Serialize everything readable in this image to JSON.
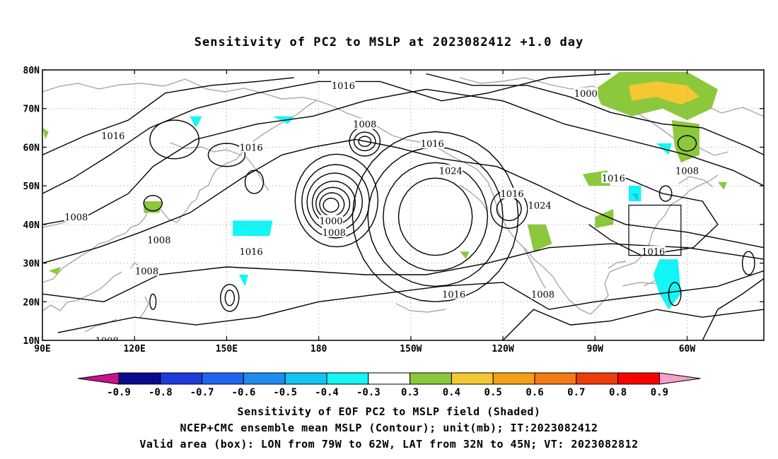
{
  "title": "Sensitivity of PC2 to MSLP at 2023082412 +1.0 day",
  "map": {
    "lat_ticks": [
      "80N",
      "70N",
      "60N",
      "50N",
      "40N",
      "30N",
      "20N",
      "10N"
    ],
    "lon_ticks": [
      "90E",
      "120E",
      "150E",
      "180",
      "150W",
      "120W",
      "90W",
      "60W"
    ],
    "valid_box": {
      "lon_from": "79W",
      "lon_to": "62W",
      "lat_from": "32N",
      "lat_to": "45N"
    }
  },
  "contour_labels": [
    {
      "text": "1016",
      "lon": -172,
      "lat": 76
    },
    {
      "text": "1000",
      "lon": -93,
      "lat": 74
    },
    {
      "text": "1016",
      "lon": 113,
      "lat": 63
    },
    {
      "text": "1008",
      "lon": -165,
      "lat": 66
    },
    {
      "text": "1016",
      "lon": 158,
      "lat": 60
    },
    {
      "text": "1016",
      "lon": -143,
      "lat": 61
    },
    {
      "text": "1024",
      "lon": -137,
      "lat": 54
    },
    {
      "text": "1008",
      "lon": -60,
      "lat": 54
    },
    {
      "text": "1016",
      "lon": -84,
      "lat": 52
    },
    {
      "text": "1016",
      "lon": -117,
      "lat": 48
    },
    {
      "text": "1024",
      "lon": -108,
      "lat": 45
    },
    {
      "text": "1008",
      "lon": 101,
      "lat": 42
    },
    {
      "text": "1000",
      "lon": -176,
      "lat": 41
    },
    {
      "text": "1008",
      "lon": -175,
      "lat": 38
    },
    {
      "text": "1008",
      "lon": 128,
      "lat": 36
    },
    {
      "text": "1016",
      "lon": -71,
      "lat": 33
    },
    {
      "text": "1016",
      "lon": 158,
      "lat": 33
    },
    {
      "text": "1008",
      "lon": 124,
      "lat": 28
    },
    {
      "text": "1016",
      "lon": -136,
      "lat": 22
    },
    {
      "text": "1008",
      "lon": -107,
      "lat": 22
    },
    {
      "text": "1008",
      "lon": 111,
      "lat": 10
    }
  ],
  "colorbar": {
    "labels": [
      "-0.9",
      "-0.8",
      "-0.7",
      "-0.6",
      "-0.5",
      "-0.4",
      "-0.3",
      "0.3",
      "0.4",
      "0.5",
      "0.6",
      "0.7",
      "0.8",
      "0.9"
    ],
    "colors": [
      "#0a0a8c",
      "#1e3cdc",
      "#1e64f0",
      "#1e8cf0",
      "#14c3f5",
      "#14f5f5",
      "#ffffff",
      "#8cc83c",
      "#f5c832",
      "#f5a014",
      "#f57814",
      "#f03c0a",
      "#ff0000"
    ],
    "low_end_color": "#c8148c",
    "high_end_color": "#f5a0c8"
  },
  "footer": {
    "line1": "Sensitivity of EOF PC2 to MSLP field (Shaded)",
    "line2": "NCEP+CMC ensemble mean MSLP (Contour); unit(mb); IT:2023082412",
    "line3": "Valid area (box): LON from 79W to 62W, LAT from 32N to 45N; VT: 2023082812"
  }
}
